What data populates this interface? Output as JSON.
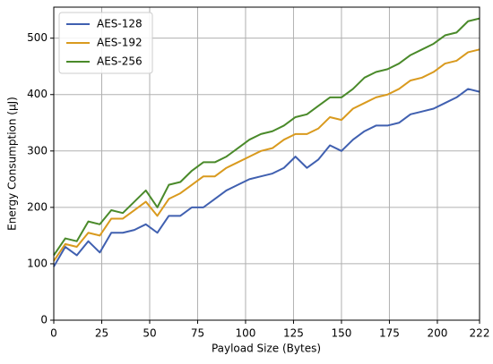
{
  "chart_data": {
    "type": "line",
    "x_label": "Payload Size (Bytes)",
    "y_label": "Energy Consumption (μJ)",
    "x": [
      0,
      6,
      12,
      18,
      24,
      30,
      36,
      42,
      48,
      54,
      60,
      66,
      72,
      78,
      84,
      90,
      96,
      102,
      108,
      114,
      120,
      126,
      132,
      138,
      144,
      150,
      156,
      162,
      168,
      174,
      180,
      186,
      192,
      198,
      204,
      210,
      216,
      222
    ],
    "series": [
      {
        "name": "AES-128",
        "color": "#4060b0",
        "values": [
          95,
          130,
          115,
          140,
          120,
          155,
          155,
          160,
          170,
          155,
          185,
          185,
          200,
          200,
          215,
          230,
          240,
          250,
          255,
          260,
          270,
          290,
          270,
          285,
          310,
          300,
          320,
          335,
          345,
          345,
          350,
          365,
          370,
          375,
          385,
          395,
          410,
          405
        ]
      },
      {
        "name": "AES-192",
        "color": "#d99a1e",
        "values": [
          105,
          135,
          130,
          155,
          150,
          180,
          180,
          195,
          210,
          185,
          215,
          225,
          240,
          255,
          255,
          270,
          280,
          290,
          300,
          305,
          320,
          330,
          330,
          340,
          360,
          355,
          375,
          385,
          395,
          400,
          410,
          425,
          430,
          440,
          455,
          460,
          475,
          480
        ]
      },
      {
        "name": "AES-256",
        "color": "#4a8a2a",
        "values": [
          115,
          145,
          140,
          175,
          170,
          195,
          190,
          210,
          230,
          200,
          240,
          245,
          265,
          280,
          280,
          290,
          305,
          320,
          330,
          335,
          345,
          360,
          365,
          380,
          395,
          395,
          410,
          430,
          440,
          445,
          455,
          470,
          480,
          490,
          505,
          510,
          530,
          535
        ]
      }
    ],
    "xlim": [
      0,
      222
    ],
    "xticks": [
      0,
      25,
      50,
      75,
      100,
      125,
      150,
      175,
      200,
      222
    ],
    "ylim": [
      0,
      555
    ],
    "yticks": [
      0,
      100,
      200,
      300,
      400,
      500
    ],
    "grid": true,
    "legend": "upper-left"
  }
}
